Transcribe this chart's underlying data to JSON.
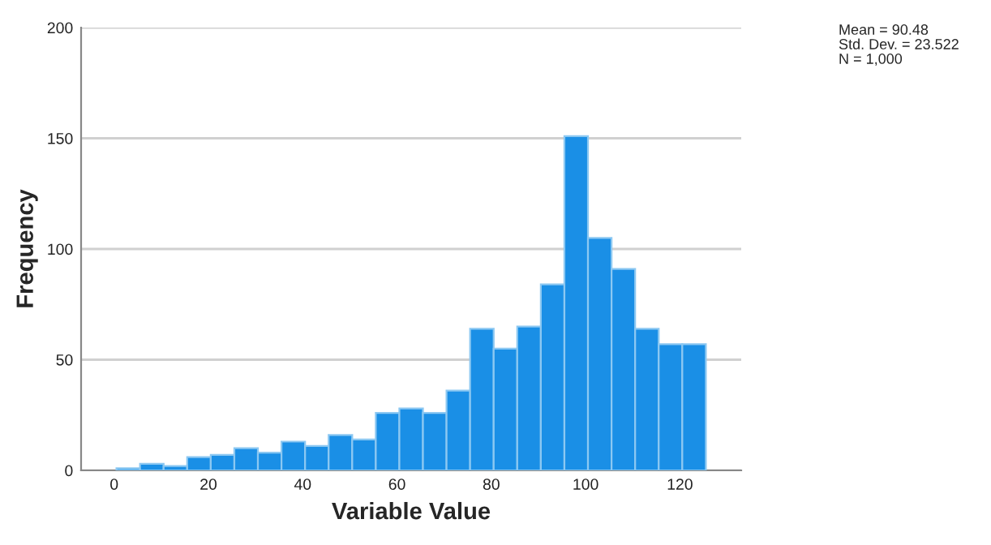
{
  "chart_data": {
    "type": "histogram",
    "xlabel": "Variable Value",
    "ylabel": "Frequency",
    "bins": [
      0.5,
      5.5,
      10.5,
      15.5,
      20.5,
      25.5,
      30.5,
      35.5,
      40.5,
      45.5,
      50.5,
      55.5,
      60.5,
      65.5,
      70.5,
      75.5,
      80.5,
      85.5,
      90.5,
      95.5,
      100.5,
      105.5,
      110.5,
      115.5,
      120.5,
      125.5
    ],
    "values": [
      1,
      3,
      2,
      6,
      7,
      10,
      8,
      13,
      11,
      16,
      14,
      26,
      28,
      26,
      36,
      64,
      55,
      65,
      84,
      151,
      105,
      91,
      64,
      57,
      57
    ],
    "color": "#1a8fe6",
    "xlim": [
      -7,
      133
    ],
    "xticks": [
      0,
      20,
      40,
      60,
      80,
      100,
      120
    ],
    "ylim": [
      0,
      200
    ],
    "yticks": [
      0,
      50,
      100,
      150,
      200
    ],
    "grid": "y",
    "annotations": [
      "Mean = 90.48",
      "Std. Dev. = 23.522",
      "N = 1,000"
    ]
  }
}
